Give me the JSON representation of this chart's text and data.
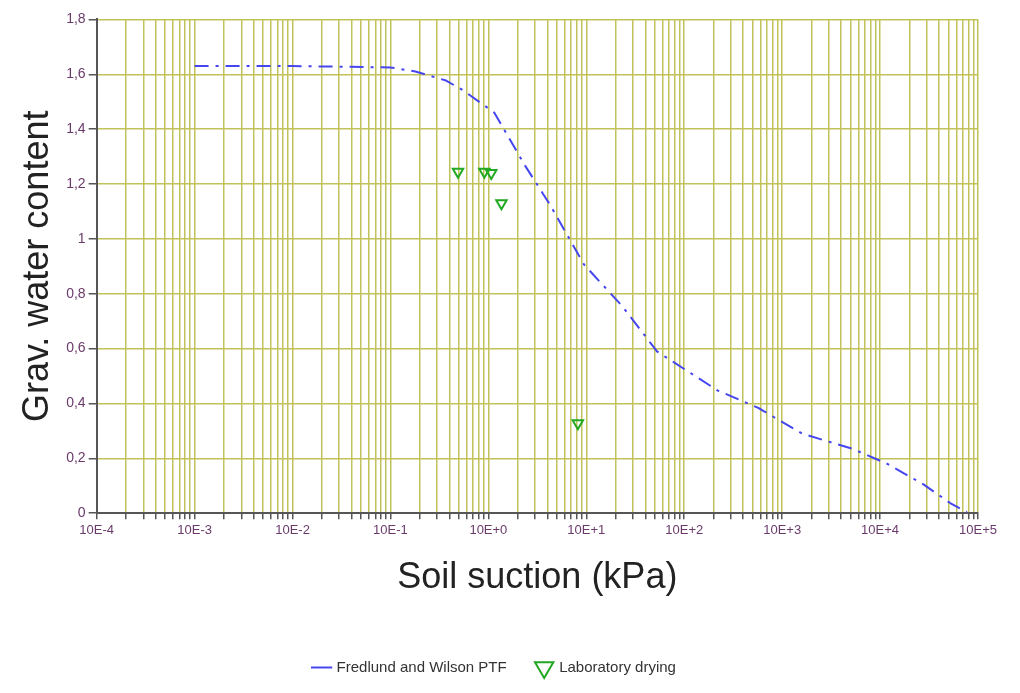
{
  "chart_data": {
    "type": "line",
    "xlabel": "Soil suction (kPa)",
    "ylabel": "Grav. water content",
    "log": "x",
    "grid": true,
    "legend": "bottom",
    "xlim": [
      0.001,
      1000000
    ],
    "ylim": [
      0,
      1.8
    ],
    "xticks": [
      {
        "value": 0.001,
        "label": "10E-4"
      },
      {
        "value": 0.002,
        "label": null
      },
      {
        "value": 0.003,
        "label": null
      },
      {
        "value": 0.004,
        "label": null
      },
      {
        "value": 0.005,
        "label": null
      },
      {
        "value": 0.006,
        "label": null
      },
      {
        "value": 0.007,
        "label": null
      },
      {
        "value": 0.008,
        "label": null
      },
      {
        "value": 0.009,
        "label": null
      },
      {
        "value": 0.01,
        "label": "10E-3"
      },
      {
        "value": 0.02,
        "label": null
      },
      {
        "value": 0.03,
        "label": null
      },
      {
        "value": 0.04,
        "label": null
      },
      {
        "value": 0.05,
        "label": null
      },
      {
        "value": 0.06,
        "label": null
      },
      {
        "value": 0.07,
        "label": null
      },
      {
        "value": 0.08,
        "label": null
      },
      {
        "value": 0.09,
        "label": null
      },
      {
        "value": 0.1,
        "label": "10E-2"
      },
      {
        "value": 0.2,
        "label": null
      },
      {
        "value": 0.3,
        "label": null
      },
      {
        "value": 0.4,
        "label": null
      },
      {
        "value": 0.5,
        "label": null
      },
      {
        "value": 0.6,
        "label": null
      },
      {
        "value": 0.7,
        "label": null
      },
      {
        "value": 0.8,
        "label": null
      },
      {
        "value": 0.9,
        "label": null
      },
      {
        "value": 1,
        "label": "10E-1"
      },
      {
        "value": 2,
        "label": null
      },
      {
        "value": 3,
        "label": null
      },
      {
        "value": 4,
        "label": null
      },
      {
        "value": 5,
        "label": null
      },
      {
        "value": 6,
        "label": null
      },
      {
        "value": 7,
        "label": null
      },
      {
        "value": 8,
        "label": null
      },
      {
        "value": 9,
        "label": null
      },
      {
        "value": 10,
        "label": "10E+0"
      },
      {
        "value": 20,
        "label": null
      },
      {
        "value": 30,
        "label": null
      },
      {
        "value": 40,
        "label": null
      },
      {
        "value": 50,
        "label": null
      },
      {
        "value": 60,
        "label": null
      },
      {
        "value": 70,
        "label": null
      },
      {
        "value": 80,
        "label": null
      },
      {
        "value": 90,
        "label": null
      },
      {
        "value": 100,
        "label": "10E+1"
      },
      {
        "value": 200,
        "label": null
      },
      {
        "value": 300,
        "label": null
      },
      {
        "value": 400,
        "label": null
      },
      {
        "value": 500,
        "label": null
      },
      {
        "value": 600,
        "label": null
      },
      {
        "value": 700,
        "label": null
      },
      {
        "value": 800,
        "label": null
      },
      {
        "value": 900,
        "label": null
      },
      {
        "value": 1000,
        "label": "10E+2"
      },
      {
        "value": 2000,
        "label": null
      },
      {
        "value": 3000,
        "label": null
      },
      {
        "value": 4000,
        "label": null
      },
      {
        "value": 5000,
        "label": null
      },
      {
        "value": 6000,
        "label": null
      },
      {
        "value": 7000,
        "label": null
      },
      {
        "value": 8000,
        "label": null
      },
      {
        "value": 9000,
        "label": null
      },
      {
        "value": 10000,
        "label": "10E+3"
      },
      {
        "value": 20000,
        "label": null
      },
      {
        "value": 30000,
        "label": null
      },
      {
        "value": 40000,
        "label": null
      },
      {
        "value": 50000,
        "label": null
      },
      {
        "value": 60000,
        "label": null
      },
      {
        "value": 70000,
        "label": null
      },
      {
        "value": 80000,
        "label": null
      },
      {
        "value": 90000,
        "label": null
      },
      {
        "value": 100000,
        "label": "10E+4"
      },
      {
        "value": 200000,
        "label": null
      },
      {
        "value": 300000,
        "label": null
      },
      {
        "value": 400000,
        "label": null
      },
      {
        "value": 500000,
        "label": null
      },
      {
        "value": 600000,
        "label": null
      },
      {
        "value": 700000,
        "label": null
      },
      {
        "value": 800000,
        "label": null
      },
      {
        "value": 900000,
        "label": null
      },
      {
        "value": 1000000,
        "label": "10E+5"
      }
    ],
    "yticks": [
      0,
      {
        "value": 0.2,
        "label": "0,2"
      },
      {
        "value": 0.4,
        "label": "0,4"
      },
      {
        "value": 0.6,
        "label": "0,6"
      },
      {
        "value": 0.8,
        "label": "0,8"
      },
      1,
      {
        "value": 1.2,
        "label": "1,2"
      },
      {
        "value": 1.4,
        "label": "1,4"
      },
      {
        "value": 1.6,
        "label": "1,6"
      },
      {
        "value": 1.8,
        "label": "1,8"
      }
    ],
    "series": [
      {
        "name": "Fredlund and Wilson PTF",
        "color": "#4646f0",
        "marker": "none",
        "line_style": "dashed",
        "x": [
          0.01,
          0.1,
          1,
          1.8,
          3.7,
          5.6,
          11.5,
          23.7,
          43,
          95,
          230,
          530,
          2200,
          5700,
          16000,
          52000,
          120000,
          280000,
          520000,
          770000
        ],
        "values": [
          1.63,
          1.63,
          1.625,
          1.61,
          1.577,
          1.54,
          1.46,
          1.267,
          1.122,
          0.906,
          0.757,
          0.589,
          0.447,
          0.384,
          0.29,
          0.235,
          0.179,
          0.104,
          0.037,
          0.004
        ]
      },
      {
        "name": "Laboratory drying",
        "type": "scatter",
        "color": "#22a822",
        "marker": "triangle",
        "x": [
          4.9,
          9.1,
          10.7,
          13.6,
          82
        ],
        "values": [
          1.245,
          1.245,
          1.24,
          1.13,
          0.328
        ]
      }
    ]
  }
}
